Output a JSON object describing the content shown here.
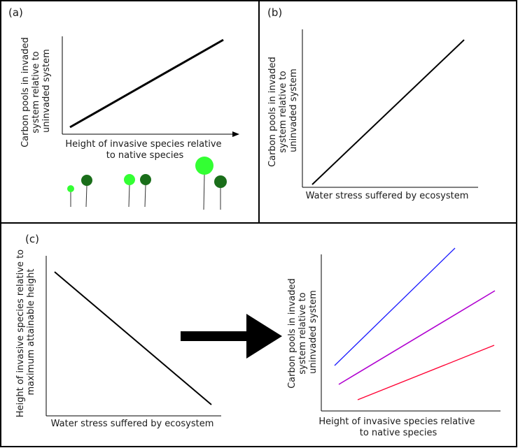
{
  "panel_a": {
    "label": "(a)",
    "ylabel": [
      "Carbon pools in invaded",
      "system relative to",
      "uninvaded system"
    ],
    "xlabel": [
      "Height of invasive species relative",
      "to native species"
    ],
    "trees": [
      {
        "role": "invasive",
        "size": "small"
      },
      {
        "role": "native",
        "size": "small"
      },
      {
        "role": "invasive",
        "size": "medium"
      },
      {
        "role": "native",
        "size": "medium"
      },
      {
        "role": "invasive",
        "size": "large"
      },
      {
        "role": "native",
        "size": "large"
      }
    ]
  },
  "panel_b": {
    "label": "(b)",
    "ylabel": [
      "Carbon pools in invaded",
      "system relative to",
      "uninvaded system"
    ],
    "xlabel": [
      "Water stress suffered by ecosystem"
    ]
  },
  "panel_c": {
    "label": "(c)",
    "left": {
      "ylabel": [
        "Height of invasive species relative to",
        "maximum attainable height"
      ],
      "xlabel": [
        "Water stress suffered by ecosystem"
      ]
    },
    "right": {
      "ylabel": [
        "Carbon pools in invaded",
        "system relative to",
        "uninvaded system"
      ],
      "xlabel": [
        "Height of invasive species relative",
        "to native species"
      ],
      "series": [
        {
          "color": "#1a1aff"
        },
        {
          "color": "#b000d0"
        },
        {
          "color": "#ff0033"
        }
      ]
    }
  },
  "colors": {
    "invasive_tree": "#33ff33",
    "native_tree": "#1a6e1a",
    "frame": "#000000"
  }
}
